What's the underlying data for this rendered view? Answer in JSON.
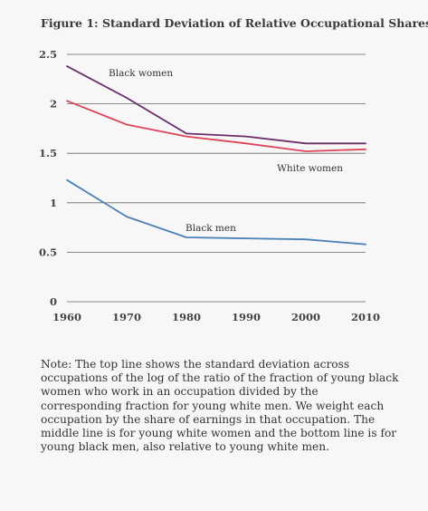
{
  "title": "Figure 1: Standard Deviation of Relative Occupational Shares",
  "note": "Note: The top line shows the standard deviation across occupations of the log of the ratio of the fraction of young black women who work in an occupation divided by the corresponding fraction for young white men. We weight each occupation by the share of earnings in that occupation. The middle line is for young white women and the bottom line is for young black men, also relative to young white men.",
  "chart_data": {
    "type": "line",
    "title": "Figure 1: Standard Deviation of Relative Occupational Shares",
    "xlabel": "",
    "ylabel": "",
    "x": [
      1960,
      1970,
      1980,
      1990,
      2000,
      2010
    ],
    "x_tick_labels": [
      "1960",
      "1970",
      "1980",
      "1990",
      "2000",
      "2010"
    ],
    "y_ticks": [
      0,
      0.5,
      1,
      1.5,
      2,
      2.5
    ],
    "y_tick_labels": [
      "0",
      "0.5",
      "1",
      "1.5",
      "2",
      "2.5"
    ],
    "xlim": [
      1960,
      2010
    ],
    "ylim": [
      0,
      2.5
    ],
    "grid": "horizontal",
    "legend": "inline labels",
    "series": [
      {
        "name": "Black women",
        "color": "#6b2d6b",
        "values": [
          2.38,
          2.06,
          1.7,
          1.67,
          1.6,
          1.6
        ]
      },
      {
        "name": "White women",
        "color": "#e0435a",
        "values": [
          2.03,
          1.79,
          1.67,
          1.6,
          1.52,
          1.54
        ]
      },
      {
        "name": "Black men",
        "color": "#4a80b8",
        "values": [
          1.23,
          0.86,
          0.65,
          0.64,
          0.63,
          0.58
        ]
      }
    ]
  }
}
